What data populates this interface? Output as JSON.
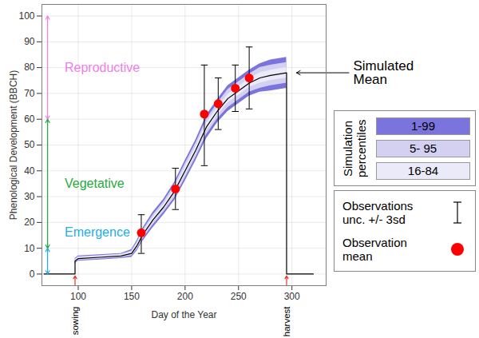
{
  "chart_data": {
    "type": "line",
    "x_label": "Day of the Year",
    "y_label": "Phenological Development (BBCH)",
    "xlim": [
      66,
      332
    ],
    "xticks": [
      100,
      150,
      200,
      250,
      300
    ],
    "ylim": [
      -4.5,
      104.5
    ],
    "yticks": [
      0,
      10,
      20,
      30,
      40,
      50,
      60,
      70,
      80,
      90,
      100
    ],
    "grid": true,
    "legend": "right",
    "series": [
      {
        "name": "Simulated Mean",
        "color": "#000000",
        "x": [
          68,
          97,
          97,
          100,
          120,
          140,
          150,
          155,
          160,
          170,
          180,
          190,
          200,
          210,
          220,
          230,
          240,
          250,
          260,
          270,
          280,
          295,
          295,
          320
        ],
        "values": [
          0,
          0,
          5,
          6,
          6.5,
          7,
          8,
          11,
          15,
          21,
          26,
          32,
          40,
          48,
          57,
          63,
          68,
          71,
          74,
          76,
          77,
          78,
          0,
          0
        ]
      }
    ],
    "bands_title": "Simulation percentiles",
    "band_x": [
      97,
      100,
      120,
      140,
      150,
      155,
      160,
      170,
      180,
      190,
      200,
      210,
      220,
      230,
      240,
      250,
      260,
      270,
      280,
      295
    ],
    "bands": [
      {
        "name": "1-99",
        "color": "#7b74dc",
        "lower": [
          4,
          5,
          5.5,
          6,
          6.5,
          9,
          12.5,
          18,
          23,
          28.5,
          36,
          44,
          52.5,
          58.5,
          63,
          66,
          69,
          70.5,
          71,
          72
        ],
        "upper": [
          6,
          7,
          7.5,
          8,
          9.5,
          13,
          17.5,
          24,
          29,
          35.5,
          44,
          52,
          61.5,
          67.5,
          73,
          76,
          79,
          81.5,
          83,
          84
        ]
      },
      {
        "name": "5- 95",
        "color": "#d3d0f2",
        "lower": [
          4.3,
          5.3,
          5.8,
          6.3,
          7,
          9.6,
          13.3,
          19,
          24,
          29.5,
          37.2,
          45.2,
          54,
          60,
          64.5,
          67.5,
          70.5,
          72,
          73,
          74
        ],
        "upper": [
          5.7,
          6.7,
          7.2,
          7.7,
          9,
          12.4,
          16.7,
          23,
          28,
          34.5,
          42.8,
          50.8,
          60,
          66,
          71.5,
          74.5,
          77.5,
          80,
          81,
          82
        ]
      },
      {
        "name": "16-84",
        "color": "#ebeaf8",
        "lower": [
          4.6,
          5.6,
          6.1,
          6.6,
          7.5,
          10.3,
          14.1,
          20,
          25,
          30.8,
          38.6,
          46.6,
          55.5,
          61.5,
          66.3,
          69.3,
          72.3,
          74,
          75,
          76
        ],
        "upper": [
          5.4,
          6.4,
          6.9,
          7.4,
          8.5,
          11.7,
          15.9,
          22,
          27,
          33.2,
          41.4,
          49.4,
          58.5,
          64.5,
          69.7,
          72.7,
          75.7,
          78,
          79,
          80
        ]
      }
    ],
    "observations": {
      "name": "Observation mean",
      "error_name": "Observations unc. +/- 3sd",
      "color": "#ff0000",
      "x": [
        159,
        191,
        218,
        231,
        247,
        260
      ],
      "values": [
        16,
        33,
        62,
        66,
        72,
        76
      ],
      "lower": [
        8,
        25,
        42,
        56,
        63,
        64
      ],
      "upper": [
        23,
        41,
        81,
        76,
        81,
        88
      ]
    },
    "phases": [
      {
        "label": "Reproductive",
        "from": 60,
        "to": 100,
        "color": "#ee7fe6"
      },
      {
        "label": "Vegetative",
        "from": 10,
        "to": 60,
        "color": "#1faa3b"
      },
      {
        "label": "Emergence",
        "from": 0,
        "to": 10,
        "color": "#22aee6"
      }
    ],
    "events": [
      {
        "label": "sowing",
        "x": 97,
        "color": "#e8342b"
      },
      {
        "label": "harvest",
        "x": 295,
        "color": "#e8342b"
      }
    ]
  }
}
